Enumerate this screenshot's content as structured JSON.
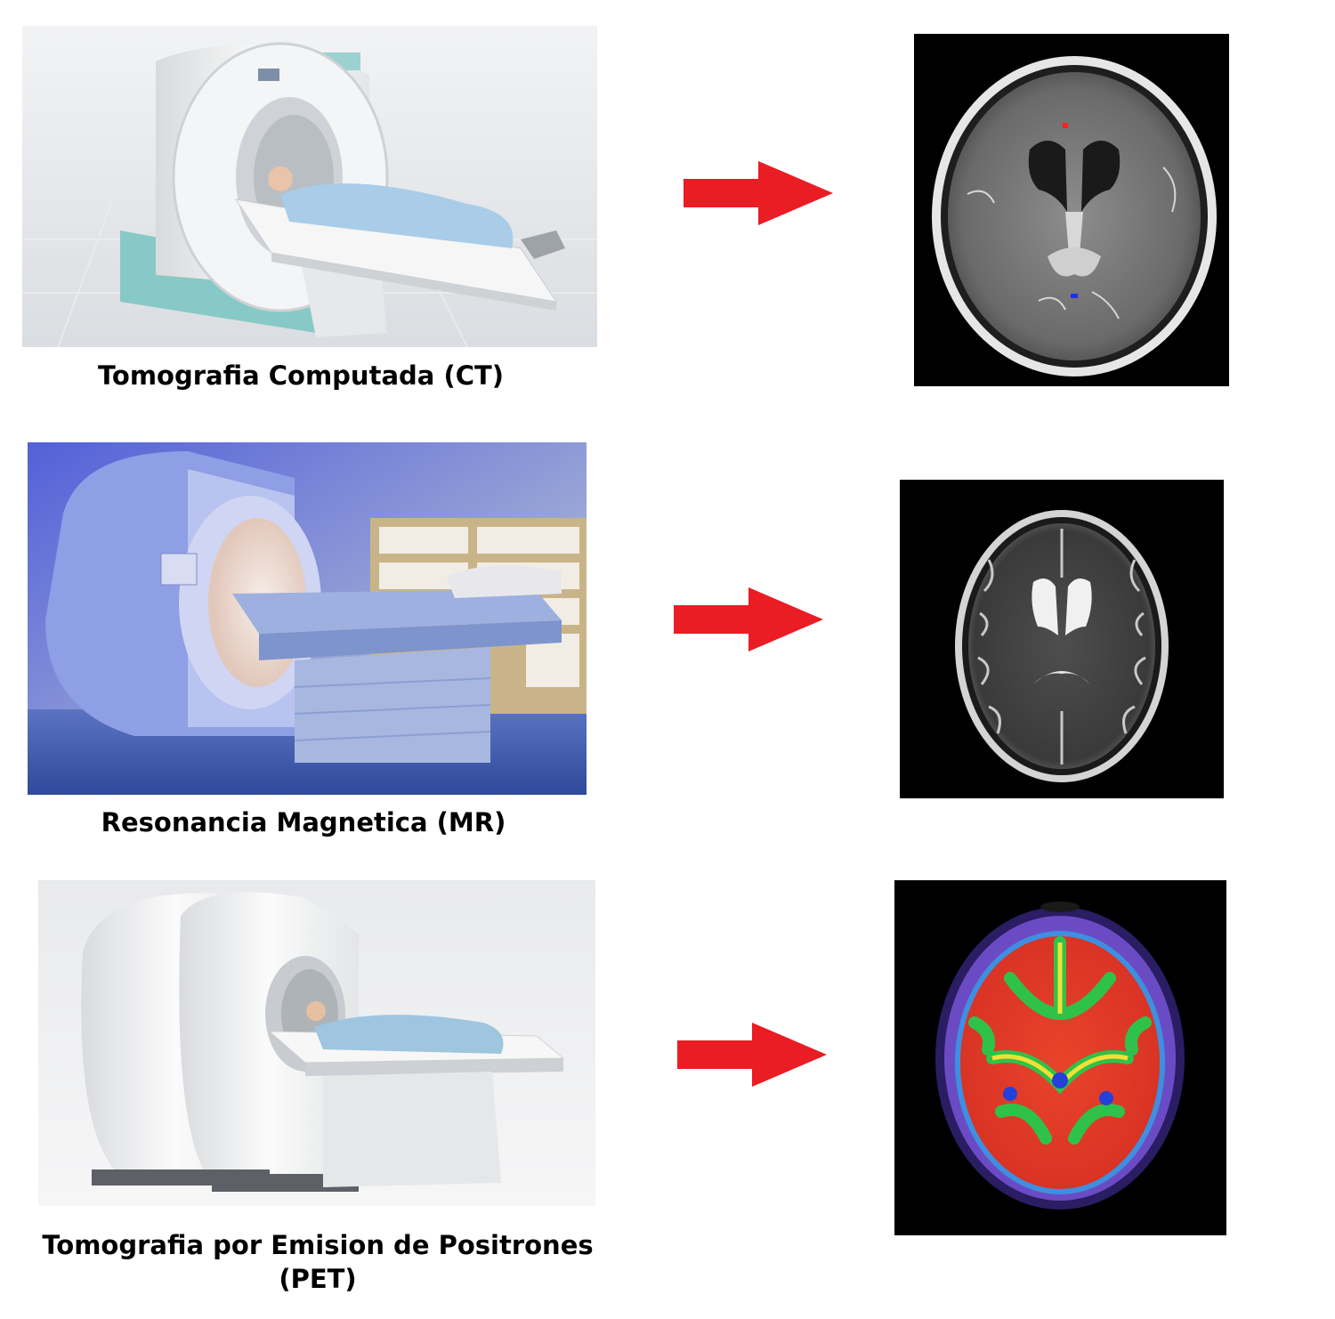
{
  "rows": [
    {
      "caption": "Tomografia Computada (CT)",
      "scan_type": "ct-brain-scan"
    },
    {
      "caption": "Resonancia Magnetica (MR)",
      "scan_type": "mr-brain-scan"
    },
    {
      "caption": "Tomografia por Emision de Positrones (PET)",
      "scan_type": "pet-brain-scan"
    }
  ],
  "arrow_color": "#ea1c24"
}
